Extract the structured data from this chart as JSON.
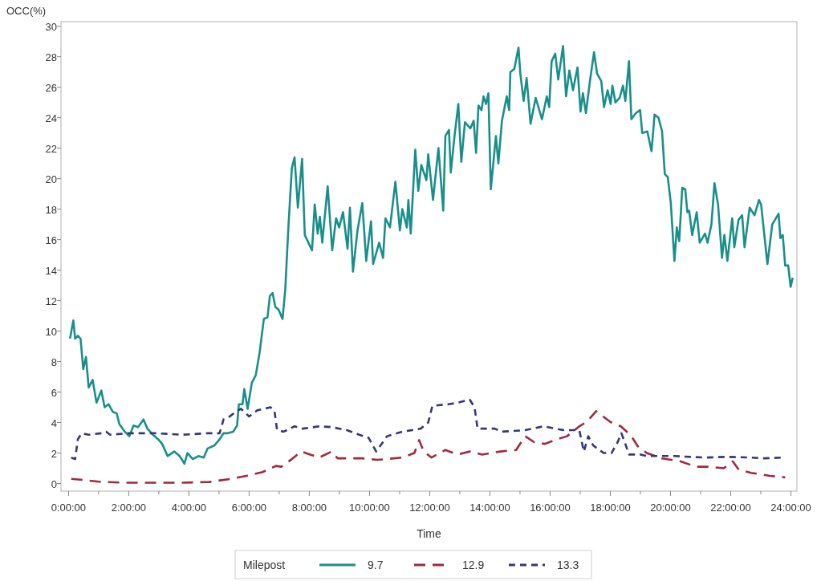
{
  "chart_data": {
    "type": "line",
    "xlabel": "Time",
    "ylabel": "OCC(%)",
    "legend_title": "Milepost",
    "legend": "bottom",
    "grid": false,
    "xlim": [
      -0.25,
      24.2
    ],
    "ylim": [
      -0.5,
      30.3
    ],
    "xticks": [
      {
        "value": 0,
        "label": "0:00:00"
      },
      {
        "value": 1,
        "label": null
      },
      {
        "value": 2,
        "label": "2:00:00"
      },
      {
        "value": 3,
        "label": null
      },
      {
        "value": 4,
        "label": "4:00:00"
      },
      {
        "value": 5,
        "label": null
      },
      {
        "value": 6,
        "label": "6:00:00"
      },
      {
        "value": 7,
        "label": null
      },
      {
        "value": 8,
        "label": "8:00:00"
      },
      {
        "value": 9,
        "label": null
      },
      {
        "value": 10,
        "label": "10:00:00"
      },
      {
        "value": 11,
        "label": null
      },
      {
        "value": 12,
        "label": "12:00:00"
      },
      {
        "value": 13,
        "label": null
      },
      {
        "value": 14,
        "label": "14:00:00"
      },
      {
        "value": 15,
        "label": null
      },
      {
        "value": 16,
        "label": "16:00:00"
      },
      {
        "value": 17,
        "label": null
      },
      {
        "value": 18,
        "label": "18:00:00"
      },
      {
        "value": 19,
        "label": null
      },
      {
        "value": 20,
        "label": "20:00:00"
      },
      {
        "value": 21,
        "label": null
      },
      {
        "value": 22,
        "label": "22:00:00"
      },
      {
        "value": 23,
        "label": null
      },
      {
        "value": 24,
        "label": "24:00:00"
      }
    ],
    "yticks": [
      0,
      2,
      4,
      6,
      8,
      10,
      12,
      14,
      16,
      18,
      20,
      22,
      24,
      26,
      28,
      30
    ],
    "series": [
      {
        "name": "9.7",
        "color": "#1a8f8a",
        "line_style": "solid",
        "x": [
          0.05,
          0.16,
          0.22,
          0.31,
          0.4,
          0.49,
          0.58,
          0.67,
          0.8,
          0.93,
          1.09,
          1.2,
          1.33,
          1.47,
          1.6,
          1.69,
          1.87,
          2.02,
          2.16,
          2.31,
          2.49,
          2.62,
          2.8,
          2.98,
          3.11,
          3.29,
          3.51,
          3.69,
          3.85,
          3.95,
          4.13,
          4.31,
          4.49,
          4.62,
          4.85,
          5.02,
          5.15,
          5.29,
          5.47,
          5.6,
          5.66,
          5.78,
          5.84,
          5.95,
          6.09,
          6.22,
          6.35,
          6.49,
          6.61,
          6.69,
          6.78,
          6.87,
          6.98,
          7.11,
          7.2,
          7.31,
          7.42,
          7.51,
          7.62,
          7.76,
          7.85,
          8.09,
          8.18,
          8.28,
          8.35,
          8.43,
          8.61,
          8.76,
          8.89,
          8.99,
          9.12,
          9.27,
          9.35,
          9.45,
          9.6,
          9.76,
          9.89,
          10.05,
          10.12,
          10.32,
          10.45,
          10.53,
          10.68,
          10.86,
          11.01,
          11.09,
          11.24,
          11.29,
          11.37,
          11.52,
          11.62,
          11.72,
          11.89,
          11.95,
          12.11,
          12.29,
          12.45,
          12.52,
          12.64,
          12.7,
          12.83,
          12.95,
          13.05,
          13.17,
          13.35,
          13.46,
          13.54,
          13.62,
          13.72,
          13.79,
          13.87,
          13.95,
          14.03,
          14.2,
          14.28,
          14.4,
          14.56,
          14.64,
          14.68,
          14.81,
          14.95,
          15.01,
          15.12,
          15.22,
          15.35,
          15.52,
          15.73,
          15.89,
          15.97,
          16.05,
          16.17,
          16.27,
          16.43,
          16.53,
          16.64,
          16.76,
          16.91,
          17.01,
          17.09,
          17.19,
          17.33,
          17.46,
          17.56,
          17.7,
          17.79,
          17.91,
          18.01,
          18.07,
          18.17,
          18.31,
          18.42,
          18.5,
          18.62,
          18.7,
          18.85,
          18.99,
          19.06,
          19.23,
          19.37,
          19.47,
          19.6,
          19.72,
          19.81,
          19.91,
          20.01,
          20.13,
          20.21,
          20.29,
          20.39,
          20.49,
          20.56,
          20.62,
          20.72,
          20.87,
          20.97,
          21.15,
          21.23,
          21.36,
          21.46,
          21.58,
          21.71,
          21.79,
          21.89,
          22.05,
          22.12,
          22.26,
          22.38,
          22.46,
          22.63,
          22.79,
          22.94,
          23.01,
          23.22,
          23.38,
          23.59,
          23.65,
          23.73,
          23.81,
          23.91,
          23.99,
          24.06
        ],
        "values": [
          9.5,
          10.7,
          9.5,
          9.7,
          9.5,
          7.5,
          8.3,
          6.3,
          6.8,
          5.3,
          6.1,
          5.0,
          5.2,
          4.7,
          4.6,
          3.9,
          3.4,
          3.1,
          3.8,
          3.7,
          4.2,
          3.6,
          3.2,
          2.9,
          2.6,
          1.8,
          2.1,
          1.8,
          1.3,
          2.0,
          1.6,
          1.8,
          1.7,
          2.3,
          2.5,
          2.9,
          3.3,
          3.3,
          3.4,
          3.8,
          5.2,
          5.2,
          6.2,
          4.9,
          6.6,
          7.1,
          8.6,
          10.8,
          10.9,
          12.3,
          12.5,
          11.6,
          11.4,
          10.8,
          12.7,
          17.0,
          20.7,
          21.4,
          18.1,
          21.3,
          16.3,
          15.3,
          18.3,
          16.4,
          17.5,
          15.8,
          19.5,
          15.3,
          17.4,
          16.8,
          17.8,
          15.4,
          18.1,
          13.9,
          16.6,
          18.4,
          14.6,
          17.2,
          14.4,
          15.8,
          14.8,
          17.4,
          16.8,
          19.8,
          16.6,
          18.0,
          16.8,
          18.6,
          16.4,
          21.9,
          19.2,
          20.9,
          19.9,
          21.6,
          18.6,
          22.0,
          17.9,
          22.8,
          23.2,
          20.4,
          22.9,
          24.9,
          21.1,
          23.7,
          23.3,
          23.8,
          21.7,
          24.8,
          24.5,
          25.4,
          24.9,
          25.6,
          19.3,
          22.8,
          21.0,
          23.8,
          25.4,
          24.5,
          27.0,
          27.2,
          28.6,
          26.9,
          25.1,
          26.6,
          23.6,
          25.3,
          23.9,
          25.4,
          24.7,
          27.7,
          28.2,
          26.5,
          28.7,
          25.4,
          27.1,
          25.8,
          27.3,
          24.4,
          25.6,
          24.3,
          26.5,
          28.3,
          26.9,
          26.4,
          24.7,
          25.8,
          24.9,
          26.1,
          25.0,
          25.3,
          26.1,
          25.1,
          27.7,
          23.9,
          24.3,
          24.5,
          23.0,
          23.1,
          21.8,
          24.2,
          24.0,
          23.1,
          20.3,
          20.1,
          18.4,
          14.6,
          16.8,
          15.9,
          19.4,
          19.3,
          17.8,
          17.9,
          16.3,
          17.8,
          15.8,
          16.4,
          15.8,
          17.0,
          19.7,
          18.3,
          14.8,
          16.3,
          14.6,
          17.4,
          15.5,
          17.3,
          17.6,
          15.5,
          18.1,
          17.6,
          18.6,
          18.3,
          14.4,
          17.0,
          17.7,
          16.1,
          16.3,
          14.3,
          14.3,
          12.9,
          13.5
        ]
      },
      {
        "name": "12.9",
        "color": "#a02a3c",
        "line_style": "dashed",
        "x": [
          0.09,
          0.4,
          1.11,
          2.0,
          2.89,
          3.78,
          4.67,
          5.38,
          5.91,
          6.45,
          6.89,
          7.07,
          7.42,
          7.73,
          7.95,
          8.33,
          8.74,
          8.94,
          9.76,
          10.27,
          11.09,
          11.49,
          11.65,
          11.8,
          12.06,
          12.52,
          12.93,
          13.33,
          13.74,
          14.35,
          14.87,
          15.17,
          15.48,
          15.83,
          16.15,
          16.56,
          16.97,
          17.22,
          17.53,
          17.99,
          18.35,
          18.6,
          18.75,
          18.91,
          19.21,
          19.72,
          20.34,
          20.85,
          21.25,
          21.77,
          22.07,
          22.27,
          22.68,
          23.3,
          23.81
        ],
        "values": [
          0.3,
          0.25,
          0.1,
          0.05,
          0.05,
          0.05,
          0.1,
          0.3,
          0.5,
          0.75,
          1.15,
          1.1,
          1.6,
          2.1,
          1.95,
          1.7,
          2.1,
          1.65,
          1.65,
          1.55,
          1.7,
          2.0,
          2.85,
          2.1,
          1.7,
          2.2,
          1.9,
          2.1,
          1.9,
          2.1,
          2.2,
          3.1,
          2.7,
          2.6,
          2.85,
          3.1,
          3.75,
          4.05,
          4.75,
          4.05,
          3.75,
          3.3,
          2.95,
          2.45,
          2.0,
          1.65,
          1.45,
          1.1,
          1.1,
          1.0,
          1.45,
          0.9,
          0.7,
          0.5,
          0.4
        ]
      },
      {
        "name": "13.3",
        "color": "#353876",
        "line_style": "dashed",
        "x": [
          0.09,
          0.22,
          0.31,
          0.44,
          0.67,
          1.11,
          1.25,
          1.38,
          2.0,
          2.89,
          3.78,
          4.67,
          5.02,
          5.15,
          5.29,
          5.55,
          5.73,
          6.0,
          6.27,
          6.71,
          6.84,
          6.93,
          7.15,
          7.51,
          7.78,
          8.33,
          8.74,
          9.25,
          9.66,
          9.97,
          10.22,
          10.37,
          10.58,
          11.09,
          11.7,
          11.95,
          12.09,
          12.62,
          12.93,
          13.33,
          13.49,
          13.59,
          14.15,
          14.41,
          15.17,
          15.78,
          16.45,
          16.97,
          17.12,
          17.27,
          17.43,
          17.78,
          18.04,
          18.24,
          18.37,
          18.5,
          18.62,
          19.01,
          19.21,
          20.13,
          21.15,
          21.87,
          22.68,
          23.09,
          23.71
        ],
        "values": [
          1.7,
          1.6,
          2.9,
          3.3,
          3.2,
          3.3,
          3.4,
          3.2,
          3.3,
          3.3,
          3.2,
          3.3,
          3.3,
          4.2,
          4.3,
          4.7,
          4.9,
          4.4,
          4.8,
          5.0,
          4.8,
          3.5,
          3.4,
          3.75,
          3.6,
          3.75,
          3.7,
          3.5,
          3.2,
          3.0,
          2.1,
          2.5,
          3.1,
          3.4,
          3.6,
          4.0,
          5.1,
          5.2,
          5.3,
          5.5,
          5.0,
          3.6,
          3.6,
          3.4,
          3.5,
          3.75,
          3.5,
          3.5,
          2.1,
          3.1,
          2.5,
          2.0,
          2.0,
          2.7,
          3.3,
          2.6,
          1.9,
          1.9,
          1.8,
          1.8,
          1.7,
          1.75,
          1.7,
          1.65,
          1.7
        ]
      }
    ]
  }
}
